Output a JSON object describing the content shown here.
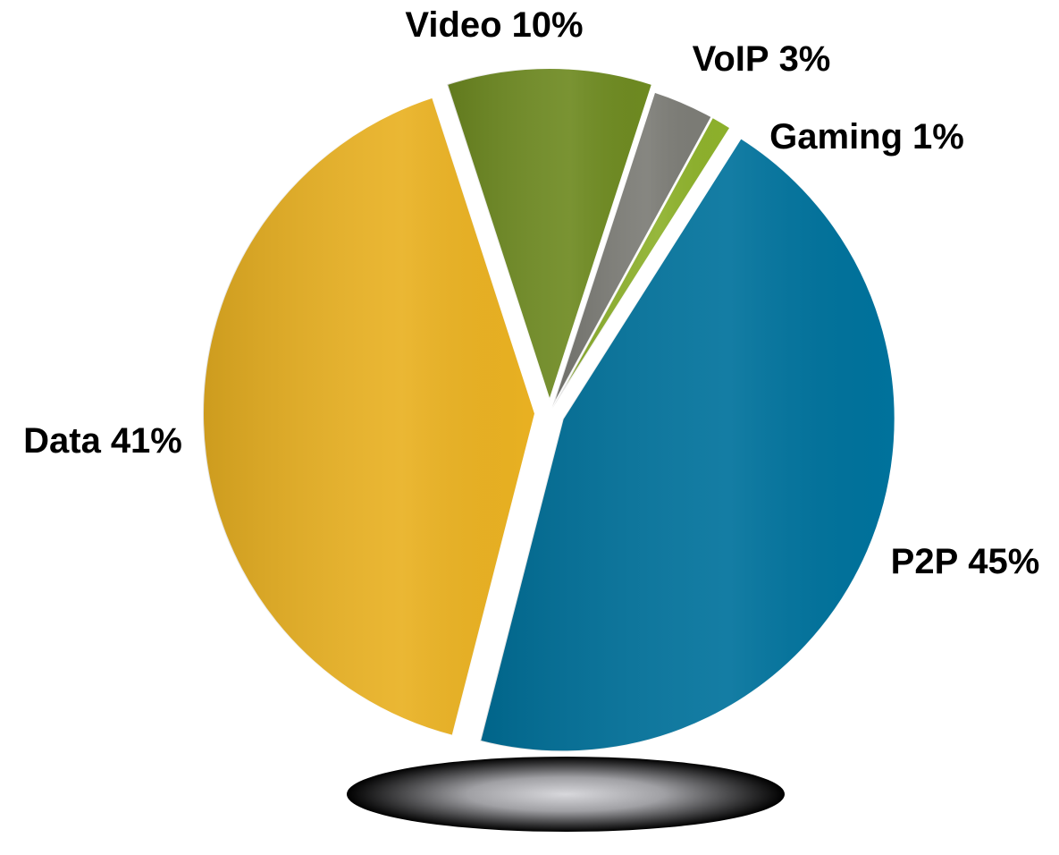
{
  "chart_data": {
    "type": "pie",
    "categories": [
      "Video",
      "VoIP",
      "Gaming",
      "P2P",
      "Data"
    ],
    "values": [
      10,
      3,
      1,
      45,
      41
    ],
    "value_labels": [
      "10%",
      "3%",
      "1%",
      "45%",
      "41%"
    ],
    "colors": [
      "#6e8a21",
      "#7c7c76",
      "#8db12b",
      "#00729c",
      "#e9b122"
    ]
  }
}
